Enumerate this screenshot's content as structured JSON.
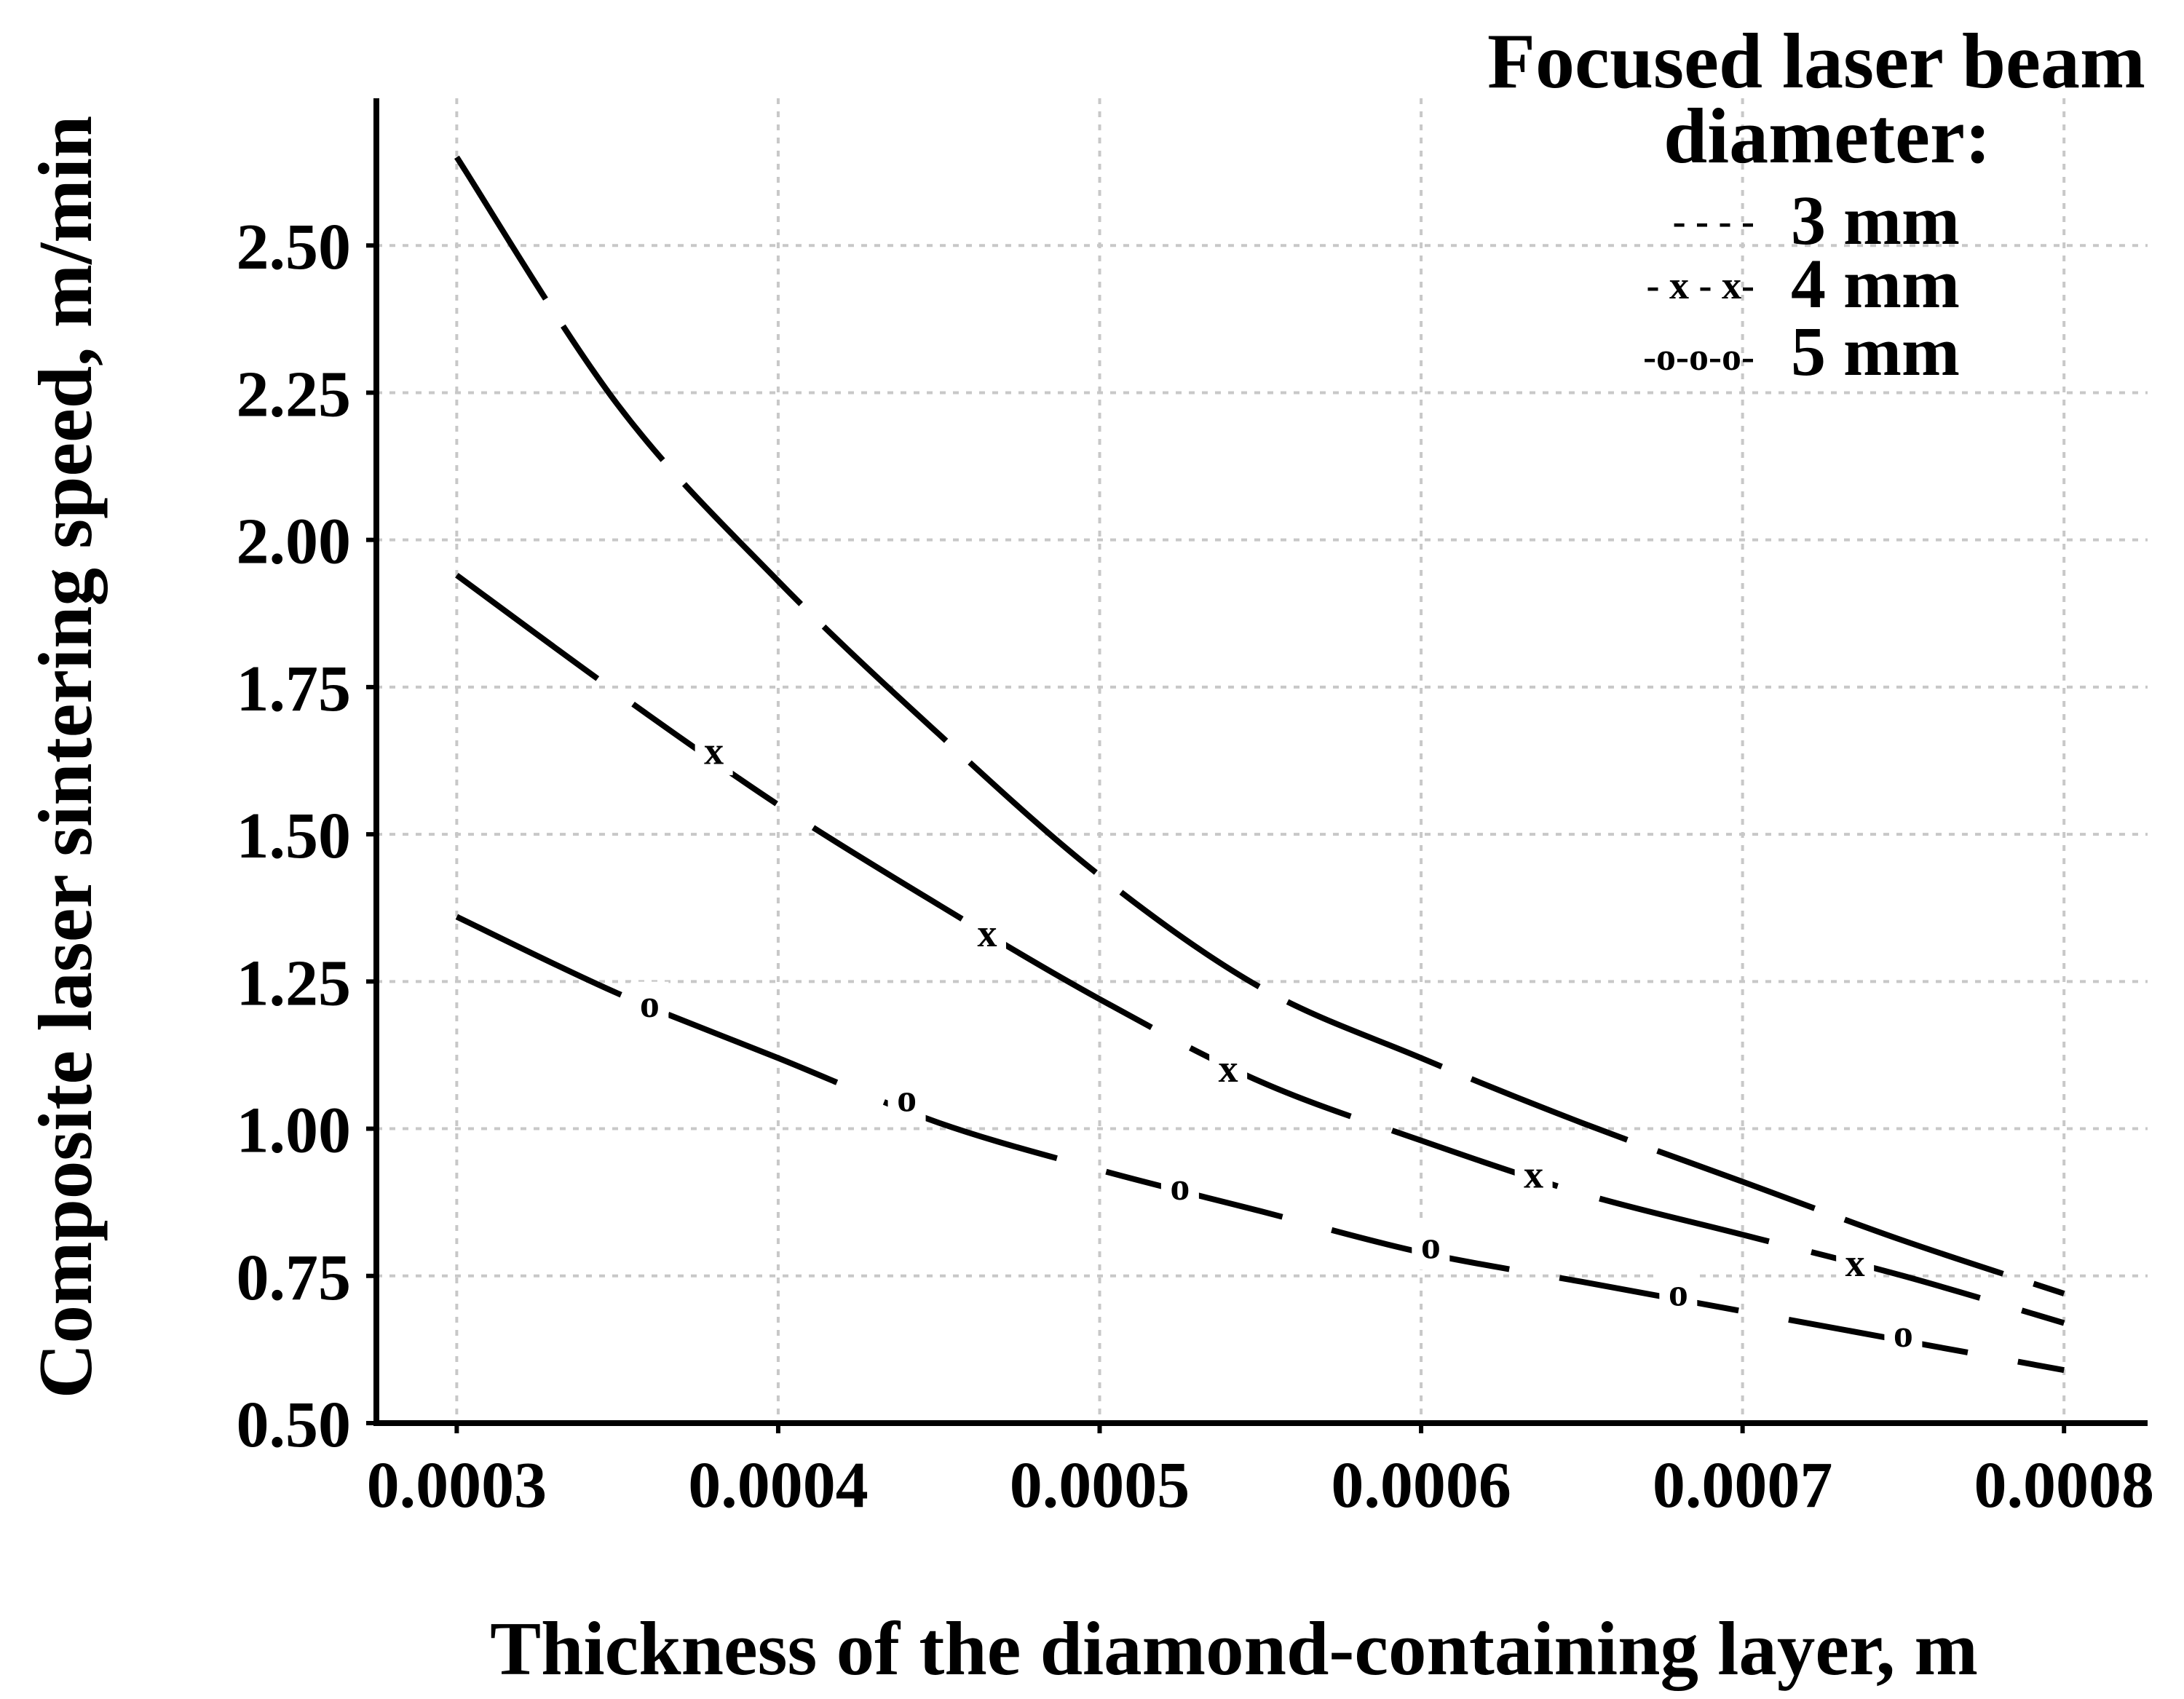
{
  "chart_data": {
    "type": "line",
    "title": "",
    "xlabel": "Thickness of the diamond-containing layer, m",
    "ylabel": "Composite laser sintering speed, m/min",
    "xlim": [
      0.000275,
      0.000826
    ],
    "ylim": [
      0.5,
      2.75
    ],
    "grid": true,
    "x_ticks": [
      0.0003,
      0.0004,
      0.0005,
      0.0006,
      0.0007,
      0.0008
    ],
    "x_tick_labels": [
      "0.0003",
      "0.0004",
      "0.0005",
      "0.0006",
      "0.0007",
      "0.0008"
    ],
    "y_ticks": [
      0.5,
      0.75,
      1.0,
      1.25,
      1.5,
      1.75,
      2.0,
      2.25,
      2.5
    ],
    "y_tick_labels": [
      "0.50",
      "0.75",
      "1.00",
      "1.25",
      "1.50",
      "1.75",
      "2.00",
      "2.25",
      "2.50"
    ],
    "legend": {
      "title_line1": "Focused laser beam",
      "title_line2": "diameter:",
      "placement": "top-right",
      "entries": [
        {
          "symbol": "- - - -",
          "label": "3 mm"
        },
        {
          "symbol": "- x - x-",
          "label": "4 mm"
        },
        {
          "symbol": "-o-o-o-",
          "label": "5 mm"
        }
      ]
    },
    "series": [
      {
        "name": "3 mm",
        "marker": "",
        "x": [
          0.0003,
          0.00035,
          0.0004,
          0.00045,
          0.0005,
          0.00055,
          0.0006,
          0.00065,
          0.0007,
          0.00075,
          0.0008
        ],
        "y": [
          2.65,
          2.23,
          1.93,
          1.67,
          1.43,
          1.24,
          1.12,
          1.01,
          0.91,
          0.81,
          0.72
        ]
      },
      {
        "name": "4 mm",
        "marker": "x",
        "x": [
          0.0003,
          0.00035,
          0.0004,
          0.00045,
          0.0005,
          0.00055,
          0.0006,
          0.00065,
          0.0007,
          0.00075,
          0.0008
        ],
        "y": [
          1.94,
          1.74,
          1.55,
          1.38,
          1.22,
          1.08,
          0.98,
          0.89,
          0.82,
          0.75,
          0.67
        ],
        "marker_x": [
          0.00038,
          0.000465,
          0.00054,
          0.000635,
          0.000735
        ],
        "marker_y": [
          1.64,
          1.33,
          1.1,
          0.92,
          0.77
        ]
      },
      {
        "name": "5 mm",
        "marker": "o",
        "x": [
          0.0003,
          0.00035,
          0.0004,
          0.00045,
          0.0005,
          0.00055,
          0.0006,
          0.00065,
          0.0007,
          0.00075,
          0.0008
        ],
        "y": [
          1.36,
          1.23,
          1.12,
          1.01,
          0.93,
          0.86,
          0.79,
          0.74,
          0.69,
          0.64,
          0.59
        ],
        "marker_x": [
          0.00036,
          0.00044,
          0.000525,
          0.000603,
          0.00068,
          0.00075
        ],
        "marker_y": [
          1.21,
          1.05,
          0.9,
          0.8,
          0.72,
          0.65
        ]
      }
    ]
  }
}
